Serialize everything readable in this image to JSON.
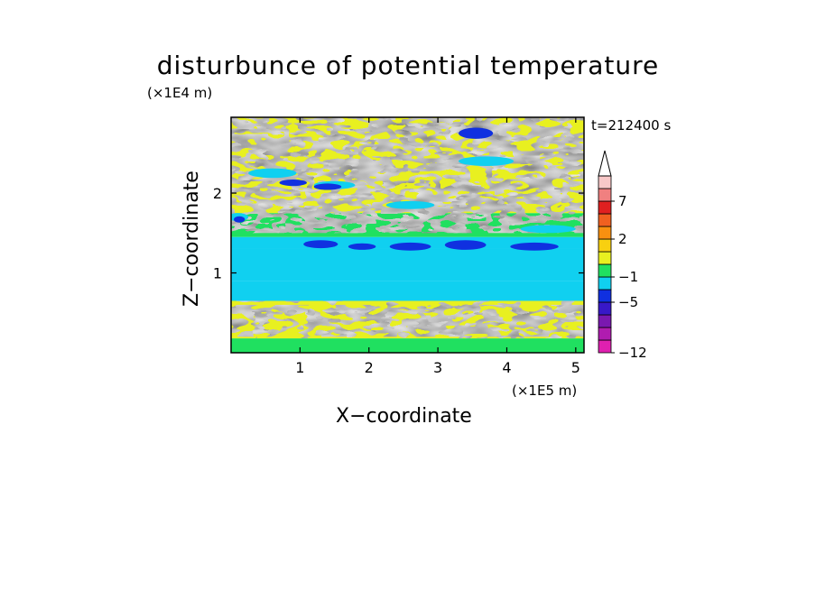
{
  "chart_data": {
    "type": "heatmap",
    "title": "disturbunce of potential temperature",
    "xlabel": "X−coordinate",
    "ylabel": "Z−coordinate",
    "x_unit": "(×1E5 m)",
    "y_unit": "(×1E4 m)",
    "time_label": "t=212400 s",
    "xlim": [
      0,
      5.12
    ],
    "ylim": [
      0,
      2.95
    ],
    "x_ticks": [
      1,
      2,
      3,
      4,
      5
    ],
    "y_ticks": [
      1,
      2
    ],
    "colorbar": {
      "levels": [
        -12,
        -11,
        -9,
        -7,
        -5,
        -3,
        -1,
        0,
        1,
        2,
        3,
        5,
        7,
        9,
        11
      ],
      "colors": [
        "#e020b0",
        "#b01cb0",
        "#7a18b0",
        "#3818c8",
        "#1030e0",
        "#10d0f0",
        "#20e060",
        "#e8f020",
        "#f8d010",
        "#f89010",
        "#f06020",
        "#e02020",
        "#f08080",
        "#f8c8c8"
      ],
      "tick_labels": [
        "7",
        "2",
        "−1",
        "−5",
        "−12"
      ],
      "tick_values": [
        7,
        2,
        -1,
        -5,
        -12
      ],
      "extend_top": true
    },
    "field_bands": [
      {
        "z_from": 0.0,
        "z_to": 0.18,
        "dominant": "green"
      },
      {
        "z_from": 0.18,
        "z_to": 0.65,
        "dominant": "yellow"
      },
      {
        "z_from": 0.65,
        "z_to": 1.3,
        "dominant": "cyan"
      },
      {
        "z_from": 1.3,
        "z_to": 1.45,
        "dominant": "blue"
      },
      {
        "z_from": 1.45,
        "z_to": 2.3,
        "dominant": "yellow/orange/green"
      },
      {
        "z_from": 2.3,
        "z_to": 2.95,
        "dominant": "yellow/orange"
      }
    ]
  }
}
